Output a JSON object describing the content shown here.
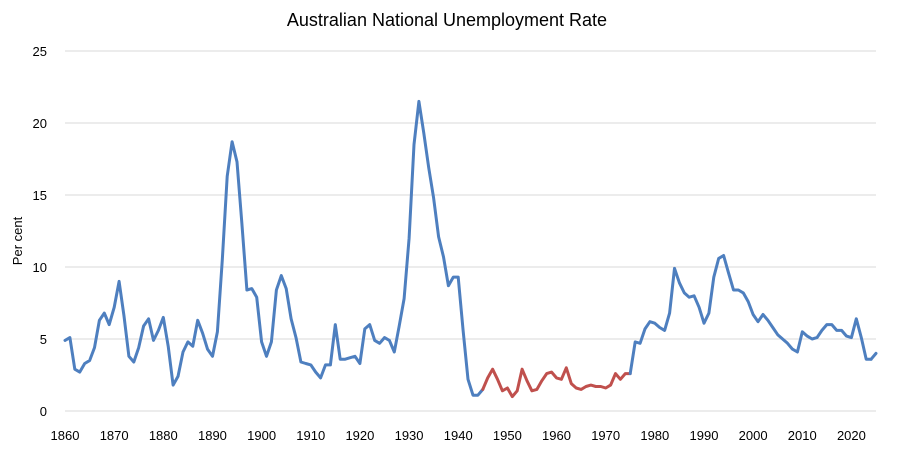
{
  "chart_data": {
    "type": "line",
    "title": "Australian National Unemployment Rate",
    "xlabel": "",
    "ylabel": "Per cent",
    "xlim": [
      1860,
      2025
    ],
    "ylim": [
      0,
      25
    ],
    "x_ticks": [
      "1860",
      "1870",
      "1880",
      "1890",
      "1900",
      "1910",
      "1920",
      "1930",
      "1940",
      "1950",
      "1960",
      "1970",
      "1980",
      "1990",
      "2000",
      "2010",
      "2020"
    ],
    "y_ticks": [
      "0",
      "5",
      "10",
      "15",
      "20",
      "25"
    ],
    "grid": "horizontal",
    "legend": "none",
    "series": [
      {
        "color": "#4e7fbf",
        "x": [
          1860,
          1861,
          1862,
          1863,
          1864,
          1865,
          1866,
          1867,
          1868,
          1869,
          1870,
          1871,
          1872,
          1873,
          1874,
          1875,
          1876,
          1877,
          1878,
          1879,
          1880,
          1881,
          1882,
          1883,
          1884,
          1885,
          1886,
          1887,
          1888,
          1889,
          1890,
          1891,
          1892,
          1893,
          1894,
          1895,
          1896,
          1897,
          1898,
          1899,
          1900,
          1901,
          1902,
          1903,
          1904,
          1905,
          1906,
          1907,
          1908,
          1909,
          1910,
          1911,
          1912,
          1913,
          1914,
          1915,
          1916,
          1917,
          1918,
          1919,
          1920,
          1921,
          1922,
          1923,
          1924,
          1925,
          1926,
          1927,
          1928,
          1929,
          1930,
          1931,
          1932,
          1933,
          1934,
          1935,
          1936,
          1937,
          1938,
          1939,
          1940,
          1941,
          1942,
          1943,
          1944,
          1945
        ],
        "y": [
          4.9,
          5.1,
          2.9,
          2.7,
          3.3,
          3.5,
          4.4,
          6.3,
          6.8,
          6.0,
          7.2,
          9.0,
          6.6,
          3.8,
          3.4,
          4.4,
          5.9,
          6.4,
          4.9,
          5.6,
          6.5,
          4.5,
          1.8,
          2.4,
          4.1,
          4.8,
          4.5,
          6.3,
          5.4,
          4.3,
          3.8,
          5.5,
          10.5,
          16.3,
          18.7,
          17.3,
          13.0,
          8.4,
          8.5,
          7.9,
          4.8,
          3.8,
          4.8,
          8.4,
          9.4,
          8.5,
          6.4,
          5.1,
          3.4,
          3.3,
          3.2,
          2.7,
          2.3,
          3.2,
          3.2,
          6.0,
          3.6,
          3.6,
          3.7,
          3.8,
          3.3,
          5.7,
          6.0,
          4.9,
          4.7,
          5.1,
          4.9,
          4.1,
          5.9,
          7.8,
          12.0,
          18.5,
          21.5,
          19.3,
          16.9,
          14.8,
          12.1,
          10.7,
          8.7,
          9.3,
          9.3,
          5.6,
          2.2,
          1.1,
          1.1,
          1.5
        ]
      },
      {
        "color": "#c0504d",
        "x": [
          1945,
          1946,
          1947,
          1948,
          1949,
          1950,
          1951,
          1952,
          1953,
          1954,
          1955,
          1956,
          1957,
          1958,
          1959,
          1960,
          1961,
          1962,
          1963,
          1964,
          1965,
          1966,
          1967,
          1968,
          1969,
          1970,
          1971,
          1972,
          1973,
          1974,
          1975
        ],
        "y": [
          1.5,
          2.3,
          2.9,
          2.2,
          1.4,
          1.6,
          1.0,
          1.4,
          2.9,
          2.1,
          1.4,
          1.5,
          2.1,
          2.6,
          2.7,
          2.3,
          2.2,
          3.0,
          1.9,
          1.6,
          1.5,
          1.7,
          1.8,
          1.7,
          1.7,
          1.6,
          1.8,
          2.6,
          2.2,
          2.6,
          2.6
        ]
      },
      {
        "color": "#4e7fbf",
        "x": [
          1975,
          1976,
          1977,
          1978,
          1979,
          1980,
          1981,
          1982,
          1983,
          1984,
          1985,
          1986,
          1987,
          1988,
          1989,
          1990,
          1991,
          1992,
          1993,
          1994,
          1995,
          1996,
          1997,
          1998,
          1999,
          2000,
          2001,
          2002,
          2003,
          2004,
          2005,
          2006,
          2007,
          2008,
          2009,
          2010,
          2011,
          2012,
          2013,
          2014,
          2015,
          2016,
          2017,
          2018,
          2019,
          2020,
          2021,
          2022,
          2023,
          2024
        ],
        "y": [
          2.6,
          4.8,
          4.7,
          5.7,
          6.2,
          6.1,
          5.8,
          5.6,
          6.8,
          9.9,
          8.9,
          8.2,
          7.9,
          8.0,
          7.2,
          6.1,
          6.8,
          9.3,
          10.6,
          10.8,
          9.6,
          8.4,
          8.4,
          8.2,
          7.6,
          6.7,
          6.2,
          6.7,
          6.3,
          5.8,
          5.3,
          5.0,
          4.7,
          4.3,
          4.1,
          5.5,
          5.2,
          5.0,
          5.1,
          5.6,
          6.0,
          6.0,
          5.6,
          5.6,
          5.2,
          5.1,
          6.4,
          5.1,
          3.6,
          3.6
        ]
      },
      {
        "color": "#4e7fbf",
        "x": [
          2024,
          2025
        ],
        "y": [
          3.6,
          4.0
        ]
      }
    ]
  }
}
